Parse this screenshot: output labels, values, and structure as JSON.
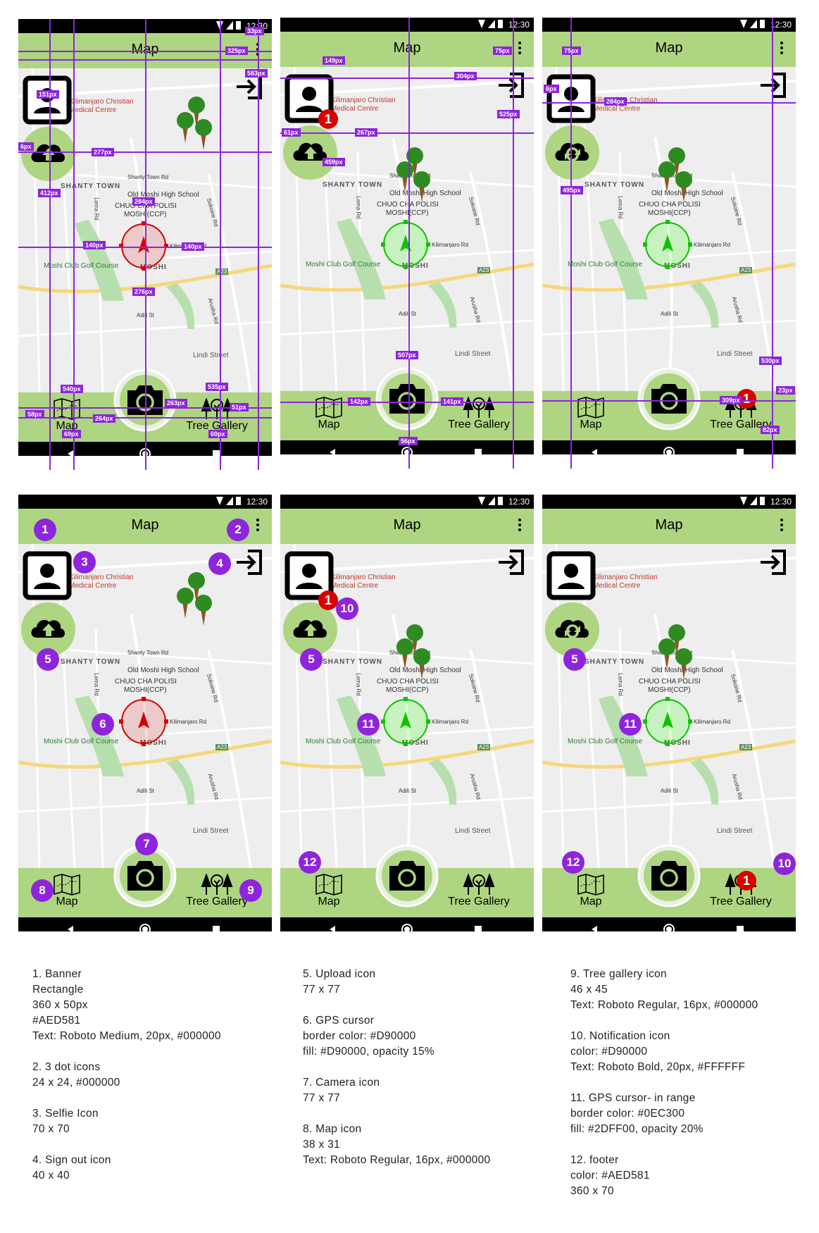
{
  "status": {
    "time": "12:30"
  },
  "app": {
    "title": "Map",
    "map_label": "Map",
    "gallery_label": "Tree Gallery"
  },
  "notification": {
    "count": "1"
  },
  "map_labels": {
    "hospital": "Kilimanjaro Christian",
    "hospital2": "Medical Centre",
    "shanty": "SHANTY TOWN",
    "shanty_rd": "Shanty Town Rd",
    "school": "Old Moshi High School",
    "chuo": "CHUO CHA POLISI",
    "chuo2": "MOSHI(CCP)",
    "lema": "Lema Rd",
    "sokoine": "Sokoine Rd",
    "kilimanjaro": "Kilimanjaro Rd",
    "golf": "Moshi Club Golf Course",
    "moshi": "MOSHI",
    "a23": "A23",
    "adili": "Adili St",
    "arusha": "Arusha Rd",
    "lindi": "Lindi Street"
  },
  "measurements": {
    "s1": [
      "33px",
      "325px",
      "583px",
      "151px",
      "6px",
      "277px",
      "412px",
      "284px",
      "140px",
      "140px",
      "276px",
      "540px",
      "535px",
      "58px",
      "264px",
      "263px",
      "51px",
      "69px",
      "60px"
    ],
    "s2": [
      "149px",
      "75px",
      "304px",
      "525px",
      "61px",
      "267px",
      "459px",
      "507px",
      "142px",
      "141px",
      "56px"
    ],
    "s3": [
      "75px",
      "284px",
      "6px",
      "495px",
      "530px",
      "309px",
      "23px",
      "82px"
    ]
  },
  "badges": {
    "b1": "1",
    "b2": "2",
    "b3": "3",
    "b4": "4",
    "b5": "5",
    "b6": "6",
    "b7": "7",
    "b8": "8",
    "b9": "9",
    "b10": "10",
    "b11": "11",
    "b12": "12"
  },
  "notes": {
    "col1": "1. Banner\nRectangle\n360 x 50px\n#AED581\nText: Roboto Medium, 20px, #000000\n\n2. 3 dot icons\n24 x 24, #000000\n\n3. Selfie Icon\n70 x 70\n\n4. Sign out icon\n40 x 40",
    "col2": "5. Upload icon\n77 x 77\n\n6. GPS cursor\nborder color: #D90000\nfill: #D90000, opacity 15%\n\n7. Camera icon\n77 x 77\n\n8. Map icon\n38 x 31\nText: Roboto Regular, 16px, #000000",
    "col3": "9. Tree gallery icon\n46 x 45\nText: Roboto Regular, 16px, #000000\n\n10. Notification icon\ncolor: #D90000\nText: Roboto Bold, 20px, #FFFFFF\n\n11. GPS cursor- in range\nborder color: #0EC300\nfill: #2DFF00, opacity 20%\n\n12. footer\ncolor: #AED581\n360 x 70"
  },
  "colors": {
    "banner": "#AED581",
    "gps_red": "#D90000",
    "gps_green": "#0EC300",
    "notify": "#D90000",
    "badge": "#8e24dd"
  }
}
